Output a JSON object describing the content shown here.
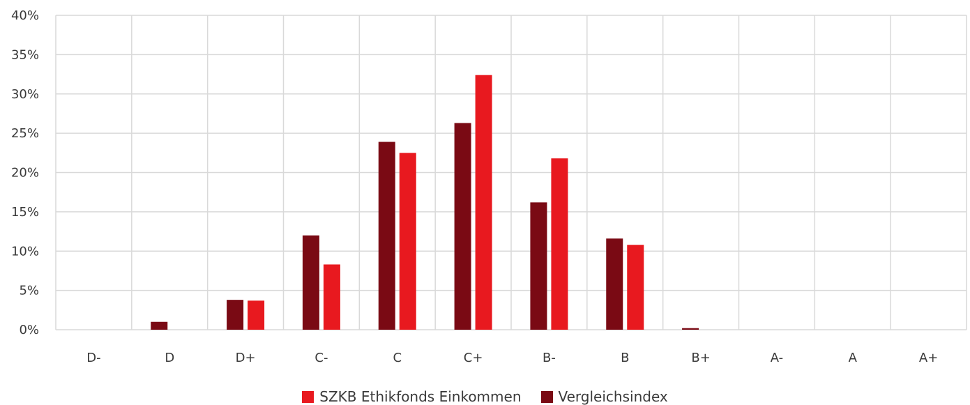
{
  "chart_data": {
    "type": "bar",
    "categories": [
      "D-",
      "D",
      "D+",
      "C-",
      "C",
      "C+",
      "B-",
      "B",
      "B+",
      "A-",
      "A",
      "A+"
    ],
    "series": [
      {
        "name": "Vergleichsindex",
        "color": "#7a0a14",
        "values": [
          0,
          1.0,
          3.8,
          12.0,
          23.9,
          26.3,
          16.2,
          11.6,
          0.2,
          0,
          0,
          0
        ]
      },
      {
        "name": "SZKB Ethikfonds Einkommen",
        "color": "#e8191f",
        "values": [
          0,
          0,
          3.7,
          8.3,
          22.5,
          32.4,
          21.8,
          10.8,
          0,
          0,
          0,
          0
        ]
      }
    ],
    "yticks": [
      "0%",
      "5%",
      "10%",
      "15%",
      "20%",
      "25%",
      "30%",
      "35%",
      "40%"
    ],
    "ylim": [
      0,
      40
    ],
    "grid": true,
    "legend_position": "bottom",
    "legend_order": [
      "SZKB Ethikfonds Einkommen",
      "Vergleichsindex"
    ]
  }
}
